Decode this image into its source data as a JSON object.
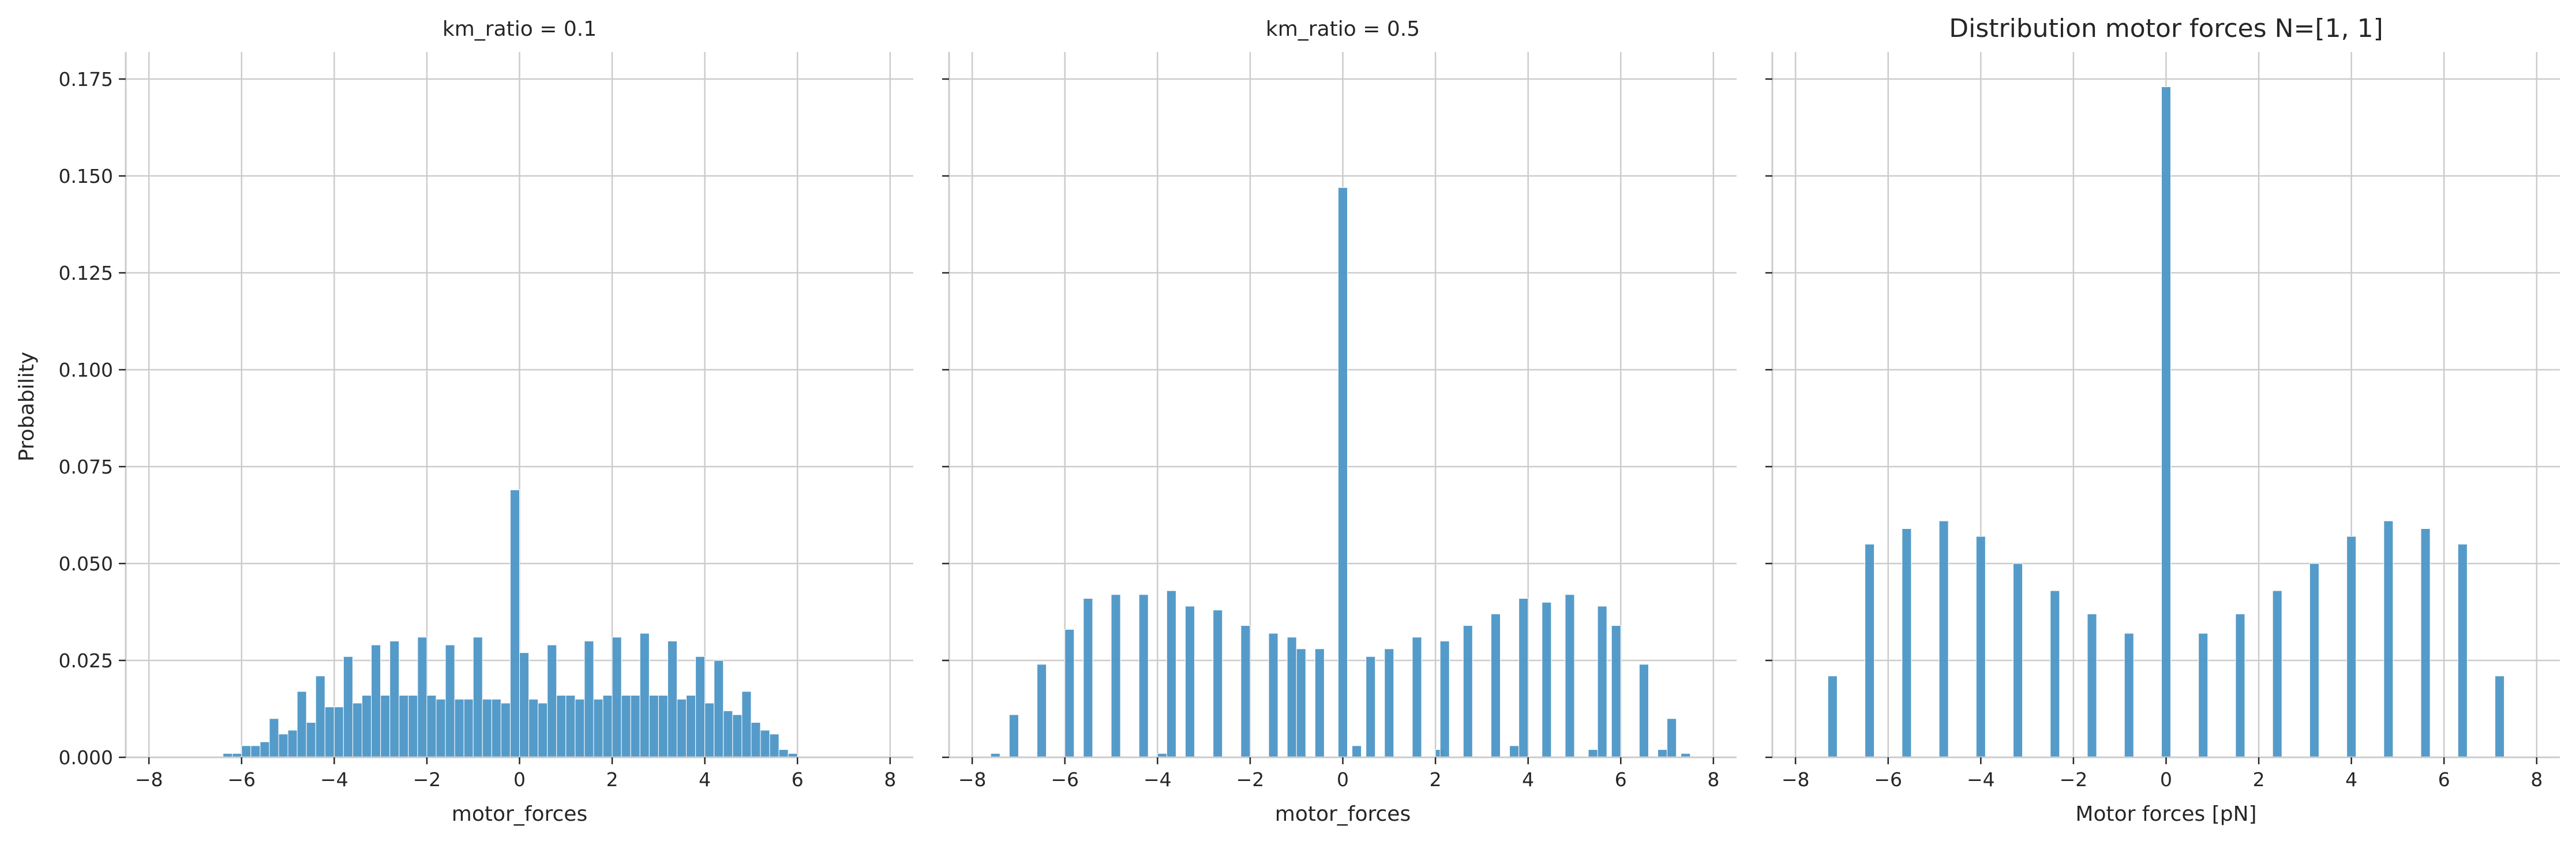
{
  "figure": {
    "suptitle": "Distribution motor forces N=[1, 1]",
    "ylabel": "Probability",
    "bar_color": "#4c96c6",
    "grid_color": "#cccccc",
    "axis_color": "#cccccc"
  },
  "chart_data": [
    {
      "type": "bar",
      "title": "km_ratio = 0.1",
      "xlabel": "motor_forces",
      "ylabel": "Probability",
      "xlim": [
        -8.5,
        8.5
      ],
      "ylim": [
        0,
        0.182
      ],
      "xticks": [
        -8,
        -6,
        -4,
        -2,
        0,
        2,
        4,
        6,
        8
      ],
      "yticks": [
        0.0,
        0.025,
        0.05,
        0.075,
        0.1,
        0.125,
        0.15,
        0.175
      ],
      "ytick_labels": [
        "0.000",
        "0.025",
        "0.050",
        "0.075",
        "0.100",
        "0.125",
        "0.150",
        "0.175"
      ],
      "grid": true,
      "bin_width": 0.2,
      "x": [
        -6.3,
        -6.1,
        -5.9,
        -5.7,
        -5.5,
        -5.3,
        -5.1,
        -4.9,
        -4.7,
        -4.5,
        -4.3,
        -4.1,
        -3.9,
        -3.7,
        -3.5,
        -3.3,
        -3.1,
        -2.9,
        -2.7,
        -2.5,
        -2.3,
        -2.1,
        -1.9,
        -1.7,
        -1.5,
        -1.3,
        -1.1,
        -0.9,
        -0.7,
        -0.5,
        -0.3,
        -0.1,
        0.1,
        0.3,
        0.5,
        0.7,
        0.9,
        1.1,
        1.3,
        1.5,
        1.7,
        1.9,
        2.1,
        2.3,
        2.5,
        2.7,
        2.9,
        3.1,
        3.3,
        3.5,
        3.7,
        3.9,
        4.1,
        4.3,
        4.5,
        4.7,
        4.9,
        5.1,
        5.3,
        5.5,
        5.7,
        5.9
      ],
      "values": [
        0.001,
        0.001,
        0.003,
        0.003,
        0.004,
        0.01,
        0.006,
        0.007,
        0.017,
        0.009,
        0.021,
        0.013,
        0.013,
        0.026,
        0.014,
        0.016,
        0.029,
        0.016,
        0.03,
        0.016,
        0.016,
        0.031,
        0.016,
        0.015,
        0.029,
        0.015,
        0.015,
        0.031,
        0.015,
        0.015,
        0.014,
        0.069,
        0.027,
        0.015,
        0.014,
        0.029,
        0.016,
        0.016,
        0.015,
        0.03,
        0.015,
        0.016,
        0.031,
        0.016,
        0.016,
        0.032,
        0.016,
        0.016,
        0.03,
        0.015,
        0.016,
        0.026,
        0.014,
        0.025,
        0.012,
        0.011,
        0.017,
        0.009,
        0.007,
        0.006,
        0.002,
        0.001
      ]
    },
    {
      "type": "bar",
      "title": "km_ratio = 0.5",
      "xlabel": "motor_forces",
      "ylabel": "",
      "xlim": [
        -8.5,
        8.5
      ],
      "ylim": [
        0,
        0.182
      ],
      "xticks": [
        -8,
        -6,
        -4,
        -2,
        0,
        2,
        4,
        6,
        8
      ],
      "grid": true,
      "bin_width": 0.2,
      "x": [
        -7.5,
        -7.1,
        -6.5,
        -5.9,
        -5.5,
        -4.9,
        -4.3,
        -3.9,
        -3.7,
        -3.3,
        -2.7,
        -2.1,
        -1.5,
        -1.1,
        -0.9,
        -0.5,
        0.0,
        0.3,
        0.6,
        1.0,
        1.6,
        2.1,
        2.2,
        2.7,
        3.3,
        3.7,
        3.9,
        4.4,
        4.9,
        5.4,
        5.6,
        5.9,
        6.5,
        6.9,
        7.1,
        7.4
      ],
      "values": [
        0.001,
        0.011,
        0.024,
        0.033,
        0.041,
        0.042,
        0.042,
        0.001,
        0.043,
        0.039,
        0.038,
        0.034,
        0.032,
        0.031,
        0.028,
        0.028,
        0.147,
        0.003,
        0.026,
        0.028,
        0.031,
        0.002,
        0.03,
        0.034,
        0.037,
        0.003,
        0.041,
        0.04,
        0.042,
        0.002,
        0.039,
        0.034,
        0.024,
        0.002,
        0.01,
        0.001
      ]
    },
    {
      "type": "bar",
      "title": "Distribution motor forces N=[1, 1]",
      "xlabel": "Motor forces [pN]",
      "ylabel": "",
      "xlim": [
        -8.5,
        8.5
      ],
      "ylim": [
        0,
        0.182
      ],
      "xticks": [
        -8,
        -6,
        -4,
        -2,
        0,
        2,
        4,
        6,
        8
      ],
      "grid": true,
      "bin_width": 0.2,
      "x": [
        -7.2,
        -6.4,
        -5.6,
        -4.8,
        -4.0,
        -3.2,
        -2.4,
        -1.6,
        -0.8,
        0.0,
        0.8,
        1.6,
        2.4,
        3.2,
        4.0,
        4.8,
        5.6,
        6.4,
        7.2
      ],
      "values": [
        0.021,
        0.055,
        0.059,
        0.061,
        0.057,
        0.05,
        0.043,
        0.037,
        0.032,
        0.173,
        0.032,
        0.037,
        0.043,
        0.05,
        0.057,
        0.061,
        0.059,
        0.055,
        0.021
      ]
    }
  ]
}
